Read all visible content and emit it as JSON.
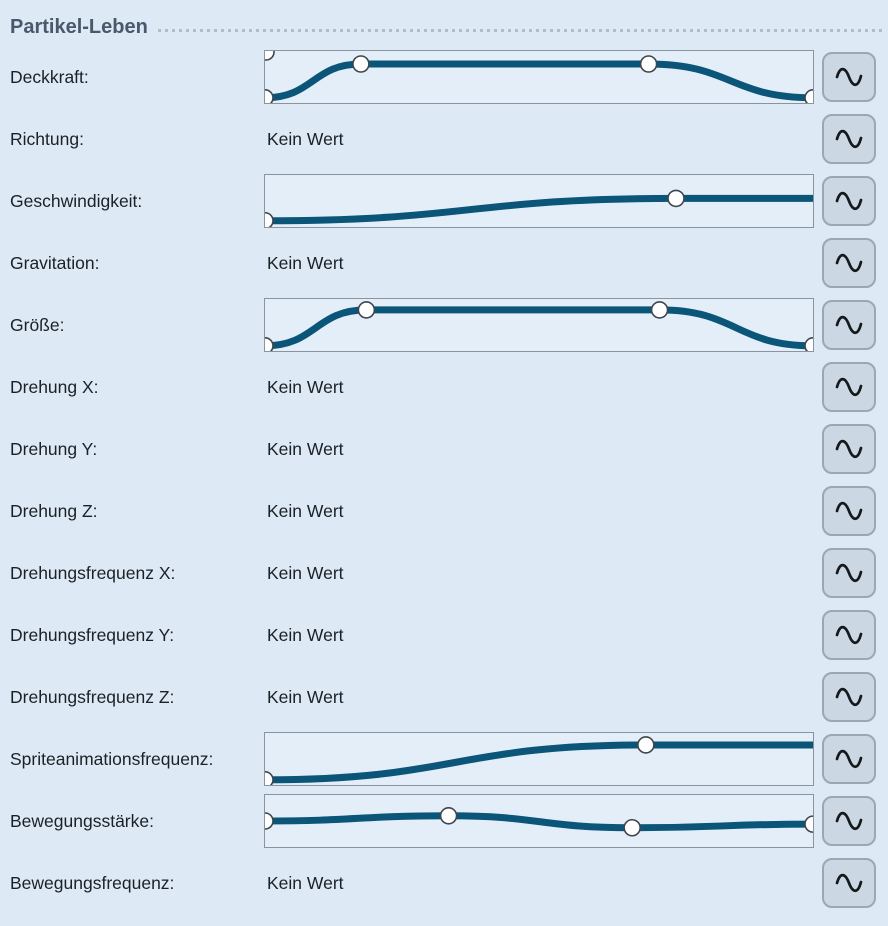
{
  "header": {
    "title": "Partikel-Leben"
  },
  "colors": {
    "background": "#dde9f5",
    "curve_box_background": "#e4eef9",
    "curve_box_border": "#8a949e",
    "curve_stroke": "#0a5578",
    "button_background": "#cbd8e4",
    "button_border": "#9ba7b3",
    "label_text": "#1b2126",
    "header_text": "#4a586c",
    "dotted_rule": "#b2bdc8",
    "marker_fill": "#ffffff",
    "marker_stroke": "#3e454b"
  },
  "icons": {
    "curve_button": "sine-wave-icon"
  },
  "rows": [
    {
      "label": "Deckkraft:",
      "type": "curve",
      "curve": {
        "points": [
          [
            0,
            0.9
          ],
          [
            0.175,
            0.25
          ],
          [
            0.7,
            0.25
          ],
          [
            1,
            0.9
          ]
        ],
        "marker_indices": [
          0,
          1,
          2,
          3
        ],
        "corner_marker_top_left": true
      }
    },
    {
      "label": "Richtung:",
      "type": "no-value",
      "value": "Kein Wert"
    },
    {
      "label": "Geschwindigkeit:",
      "type": "curve",
      "curve": {
        "points": [
          [
            0,
            0.88
          ],
          [
            0.75,
            0.45
          ],
          [
            1,
            0.45
          ]
        ],
        "marker_indices": [
          0,
          1
        ]
      }
    },
    {
      "label": "Gravitation:",
      "type": "no-value",
      "value": "Kein Wert"
    },
    {
      "label": "Größe:",
      "type": "curve",
      "curve": {
        "points": [
          [
            0,
            0.9
          ],
          [
            0.185,
            0.21
          ],
          [
            0.72,
            0.21
          ],
          [
            1,
            0.9
          ]
        ],
        "marker_indices": [
          0,
          1,
          2,
          3
        ]
      }
    },
    {
      "label": "Drehung X:",
      "type": "no-value",
      "value": "Kein Wert"
    },
    {
      "label": "Drehung Y:",
      "type": "no-value",
      "value": "Kein Wert"
    },
    {
      "label": "Drehung Z:",
      "type": "no-value",
      "value": "Kein Wert"
    },
    {
      "label": "Drehungsfrequenz X:",
      "type": "no-value",
      "value": "Kein Wert"
    },
    {
      "label": "Drehungsfrequenz Y:",
      "type": "no-value",
      "value": "Kein Wert"
    },
    {
      "label": "Drehungsfrequenz Z:",
      "type": "no-value",
      "value": "Kein Wert"
    },
    {
      "label": "Spriteanimationsfrequenz:",
      "type": "curve",
      "curve": {
        "points": [
          [
            0,
            0.9
          ],
          [
            0.695,
            0.23
          ],
          [
            1,
            0.23
          ]
        ],
        "marker_indices": [
          0,
          1
        ]
      }
    },
    {
      "label": "Bewegungsstärke:",
      "type": "curve",
      "curve": {
        "points": [
          [
            0,
            0.5
          ],
          [
            0.335,
            0.4
          ],
          [
            0.67,
            0.63
          ],
          [
            1,
            0.56
          ]
        ],
        "marker_indices": [
          0,
          1,
          2,
          3
        ]
      }
    },
    {
      "label": "Bewegungsfrequenz:",
      "type": "no-value",
      "value": "Kein Wert"
    }
  ]
}
